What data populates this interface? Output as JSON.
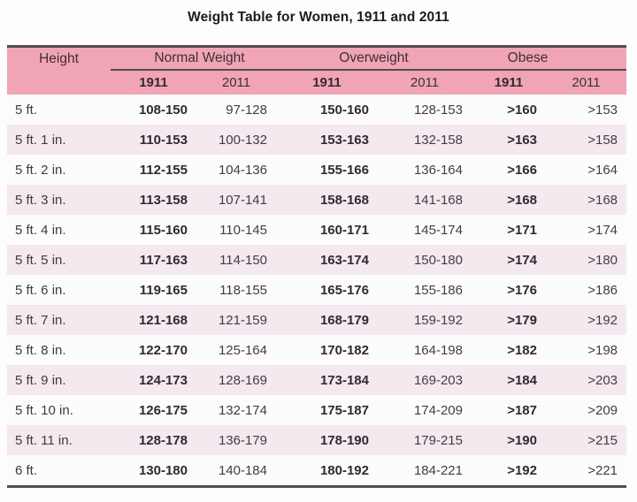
{
  "title": "Weight Table for Women, 1911 and 2011",
  "table": {
    "corner_label": "Height",
    "groups": [
      {
        "label": "Normal Weight"
      },
      {
        "label": "Overweight"
      },
      {
        "label": "Obese"
      }
    ],
    "year_headers": [
      "1911",
      "2011",
      "1911",
      "2011",
      "1911",
      "2011"
    ],
    "rows": [
      {
        "height": "5 ft.",
        "values": [
          "108-150",
          "97-128",
          "150-160",
          "128-153",
          ">160",
          ">153"
        ]
      },
      {
        "height": "5 ft. 1 in.",
        "values": [
          "110-153",
          "100-132",
          "153-163",
          "132-158",
          ">163",
          ">158"
        ]
      },
      {
        "height": "5 ft. 2 in.",
        "values": [
          "112-155",
          "104-136",
          "155-166",
          "136-164",
          ">166",
          ">164"
        ]
      },
      {
        "height": "5 ft. 3 in.",
        "values": [
          "113-158",
          "107-141",
          "158-168",
          "141-168",
          ">168",
          ">168"
        ]
      },
      {
        "height": "5 ft. 4 in.",
        "values": [
          "115-160",
          "110-145",
          "160-171",
          "145-174",
          ">171",
          ">174"
        ]
      },
      {
        "height": "5 ft. 5 in.",
        "values": [
          "117-163",
          "114-150",
          "163-174",
          "150-180",
          ">174",
          ">180"
        ]
      },
      {
        "height": "5 ft. 6 in.",
        "values": [
          "119-165",
          "118-155",
          "165-176",
          "155-186",
          ">176",
          ">186"
        ]
      },
      {
        "height": "5 ft. 7 in.",
        "values": [
          "121-168",
          "121-159",
          "168-179",
          "159-192",
          ">179",
          ">192"
        ]
      },
      {
        "height": "5 ft. 8 in.",
        "values": [
          "122-170",
          "125-164",
          "170-182",
          "164-198",
          ">182",
          ">198"
        ]
      },
      {
        "height": "5 ft. 9 in.",
        "values": [
          "124-173",
          "128-169",
          "173-184",
          "169-203",
          ">184",
          ">203"
        ]
      },
      {
        "height": "5 ft. 10 in.",
        "values": [
          "126-175",
          "132-174",
          "175-187",
          "174-209",
          ">187",
          ">209"
        ]
      },
      {
        "height": "5 ft. 11 in.",
        "values": [
          "128-178",
          "136-179",
          "178-190",
          "179-215",
          ">190",
          ">215"
        ]
      },
      {
        "height": "6 ft.",
        "values": [
          "130-180",
          "140-184",
          "180-192",
          "184-221",
          ">192",
          ">221"
        ]
      }
    ],
    "colors": {
      "header_bg": "#f1a5b4",
      "row_alt_bg": "#f5e9f0",
      "row_bg": "#fdfcfc",
      "border": "#4f4f4f",
      "text": "#3c3c3c"
    }
  }
}
